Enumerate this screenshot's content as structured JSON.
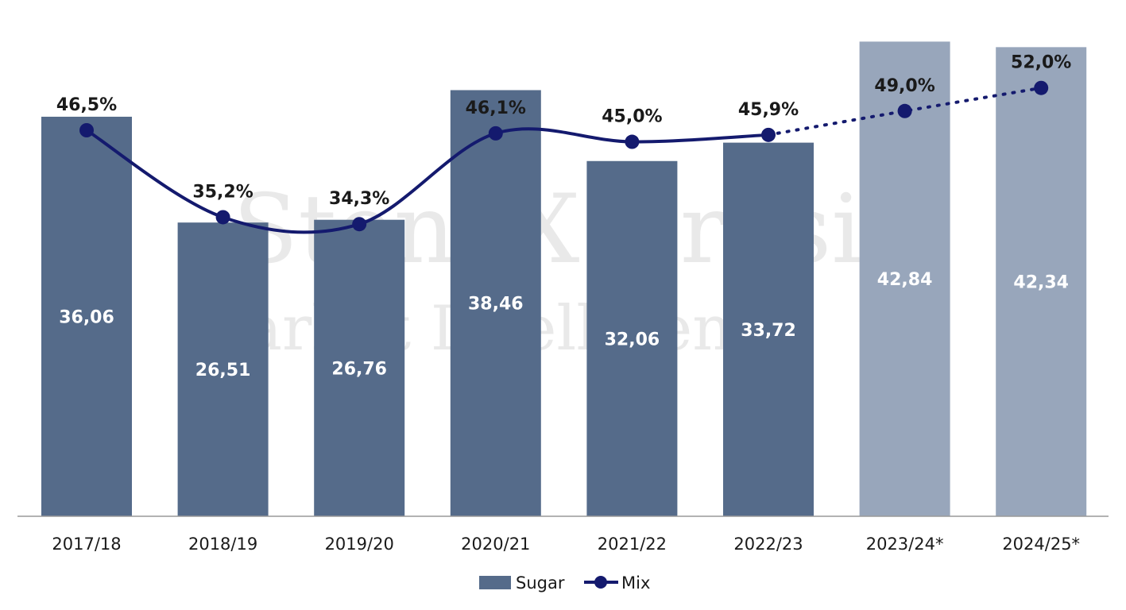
{
  "chart_data": {
    "type": "bar",
    "categories": [
      "2017/18",
      "2018/19",
      "2019/20",
      "2020/21",
      "2021/22",
      "2022/23",
      "2023/24*",
      "2024/25*"
    ],
    "series": [
      {
        "name": "Sugar",
        "type": "bar",
        "values": [
          36.06,
          26.51,
          26.76,
          38.46,
          32.06,
          33.72,
          42.84,
          42.34
        ],
        "value_labels": [
          "36,06",
          "26,51",
          "26,76",
          "38,46",
          "32,06",
          "33,72",
          "42,84",
          "42,34"
        ],
        "projected": [
          false,
          false,
          false,
          false,
          false,
          false,
          true,
          true
        ]
      },
      {
        "name": "Mix",
        "type": "line",
        "values": [
          46.5,
          35.2,
          34.3,
          46.1,
          45.0,
          45.9,
          49.0,
          52.0
        ],
        "value_labels": [
          "46,5%",
          "35,2%",
          "34,3%",
          "46,1%",
          "45,0%",
          "45,9%",
          "49,0%",
          "52,0%"
        ],
        "projected": [
          false,
          false,
          false,
          false,
          false,
          false,
          true,
          true
        ]
      }
    ],
    "title": "",
    "xlabel": "",
    "ylabel": "",
    "legend_position": "bottom-center",
    "grid": false,
    "colors": {
      "bar": "#556b8a",
      "bar_projected": "#98a6bb",
      "line": "#141a6e",
      "axis": "#9a9a9a"
    }
  },
  "watermark": {
    "line1": "StoneX Brasil",
    "line2": "Market Intelligence"
  }
}
